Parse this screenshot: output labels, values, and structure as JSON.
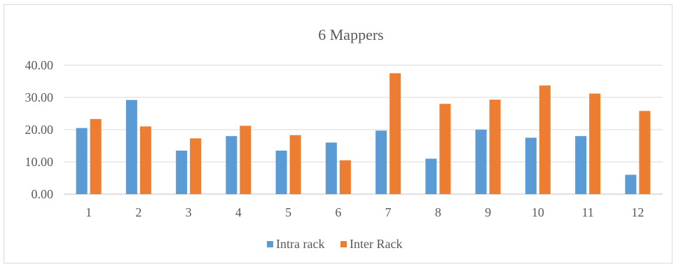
{
  "chart_data": {
    "type": "bar",
    "title": "6 Mappers",
    "xlabel": "",
    "ylabel": "",
    "categories": [
      "1",
      "2",
      "3",
      "4",
      "5",
      "6",
      "7",
      "8",
      "9",
      "10",
      "11",
      "12"
    ],
    "series": [
      {
        "name": "Intra rack",
        "color": "#5b9bd5",
        "values": [
          20.5,
          29.2,
          13.5,
          18.0,
          13.5,
          16.0,
          19.7,
          11.0,
          20.0,
          17.5,
          18.0,
          6.0
        ]
      },
      {
        "name": "Inter Rack",
        "color": "#ed7d31",
        "values": [
          23.3,
          21.0,
          17.3,
          21.2,
          18.3,
          10.5,
          37.5,
          28.0,
          29.3,
          33.7,
          31.2,
          25.8
        ]
      }
    ],
    "ylim": [
      0,
      40
    ],
    "yticks": [
      "0.00",
      "10.00",
      "20.00",
      "30.00",
      "40.00"
    ],
    "grid": true,
    "legend_position": "bottom"
  }
}
